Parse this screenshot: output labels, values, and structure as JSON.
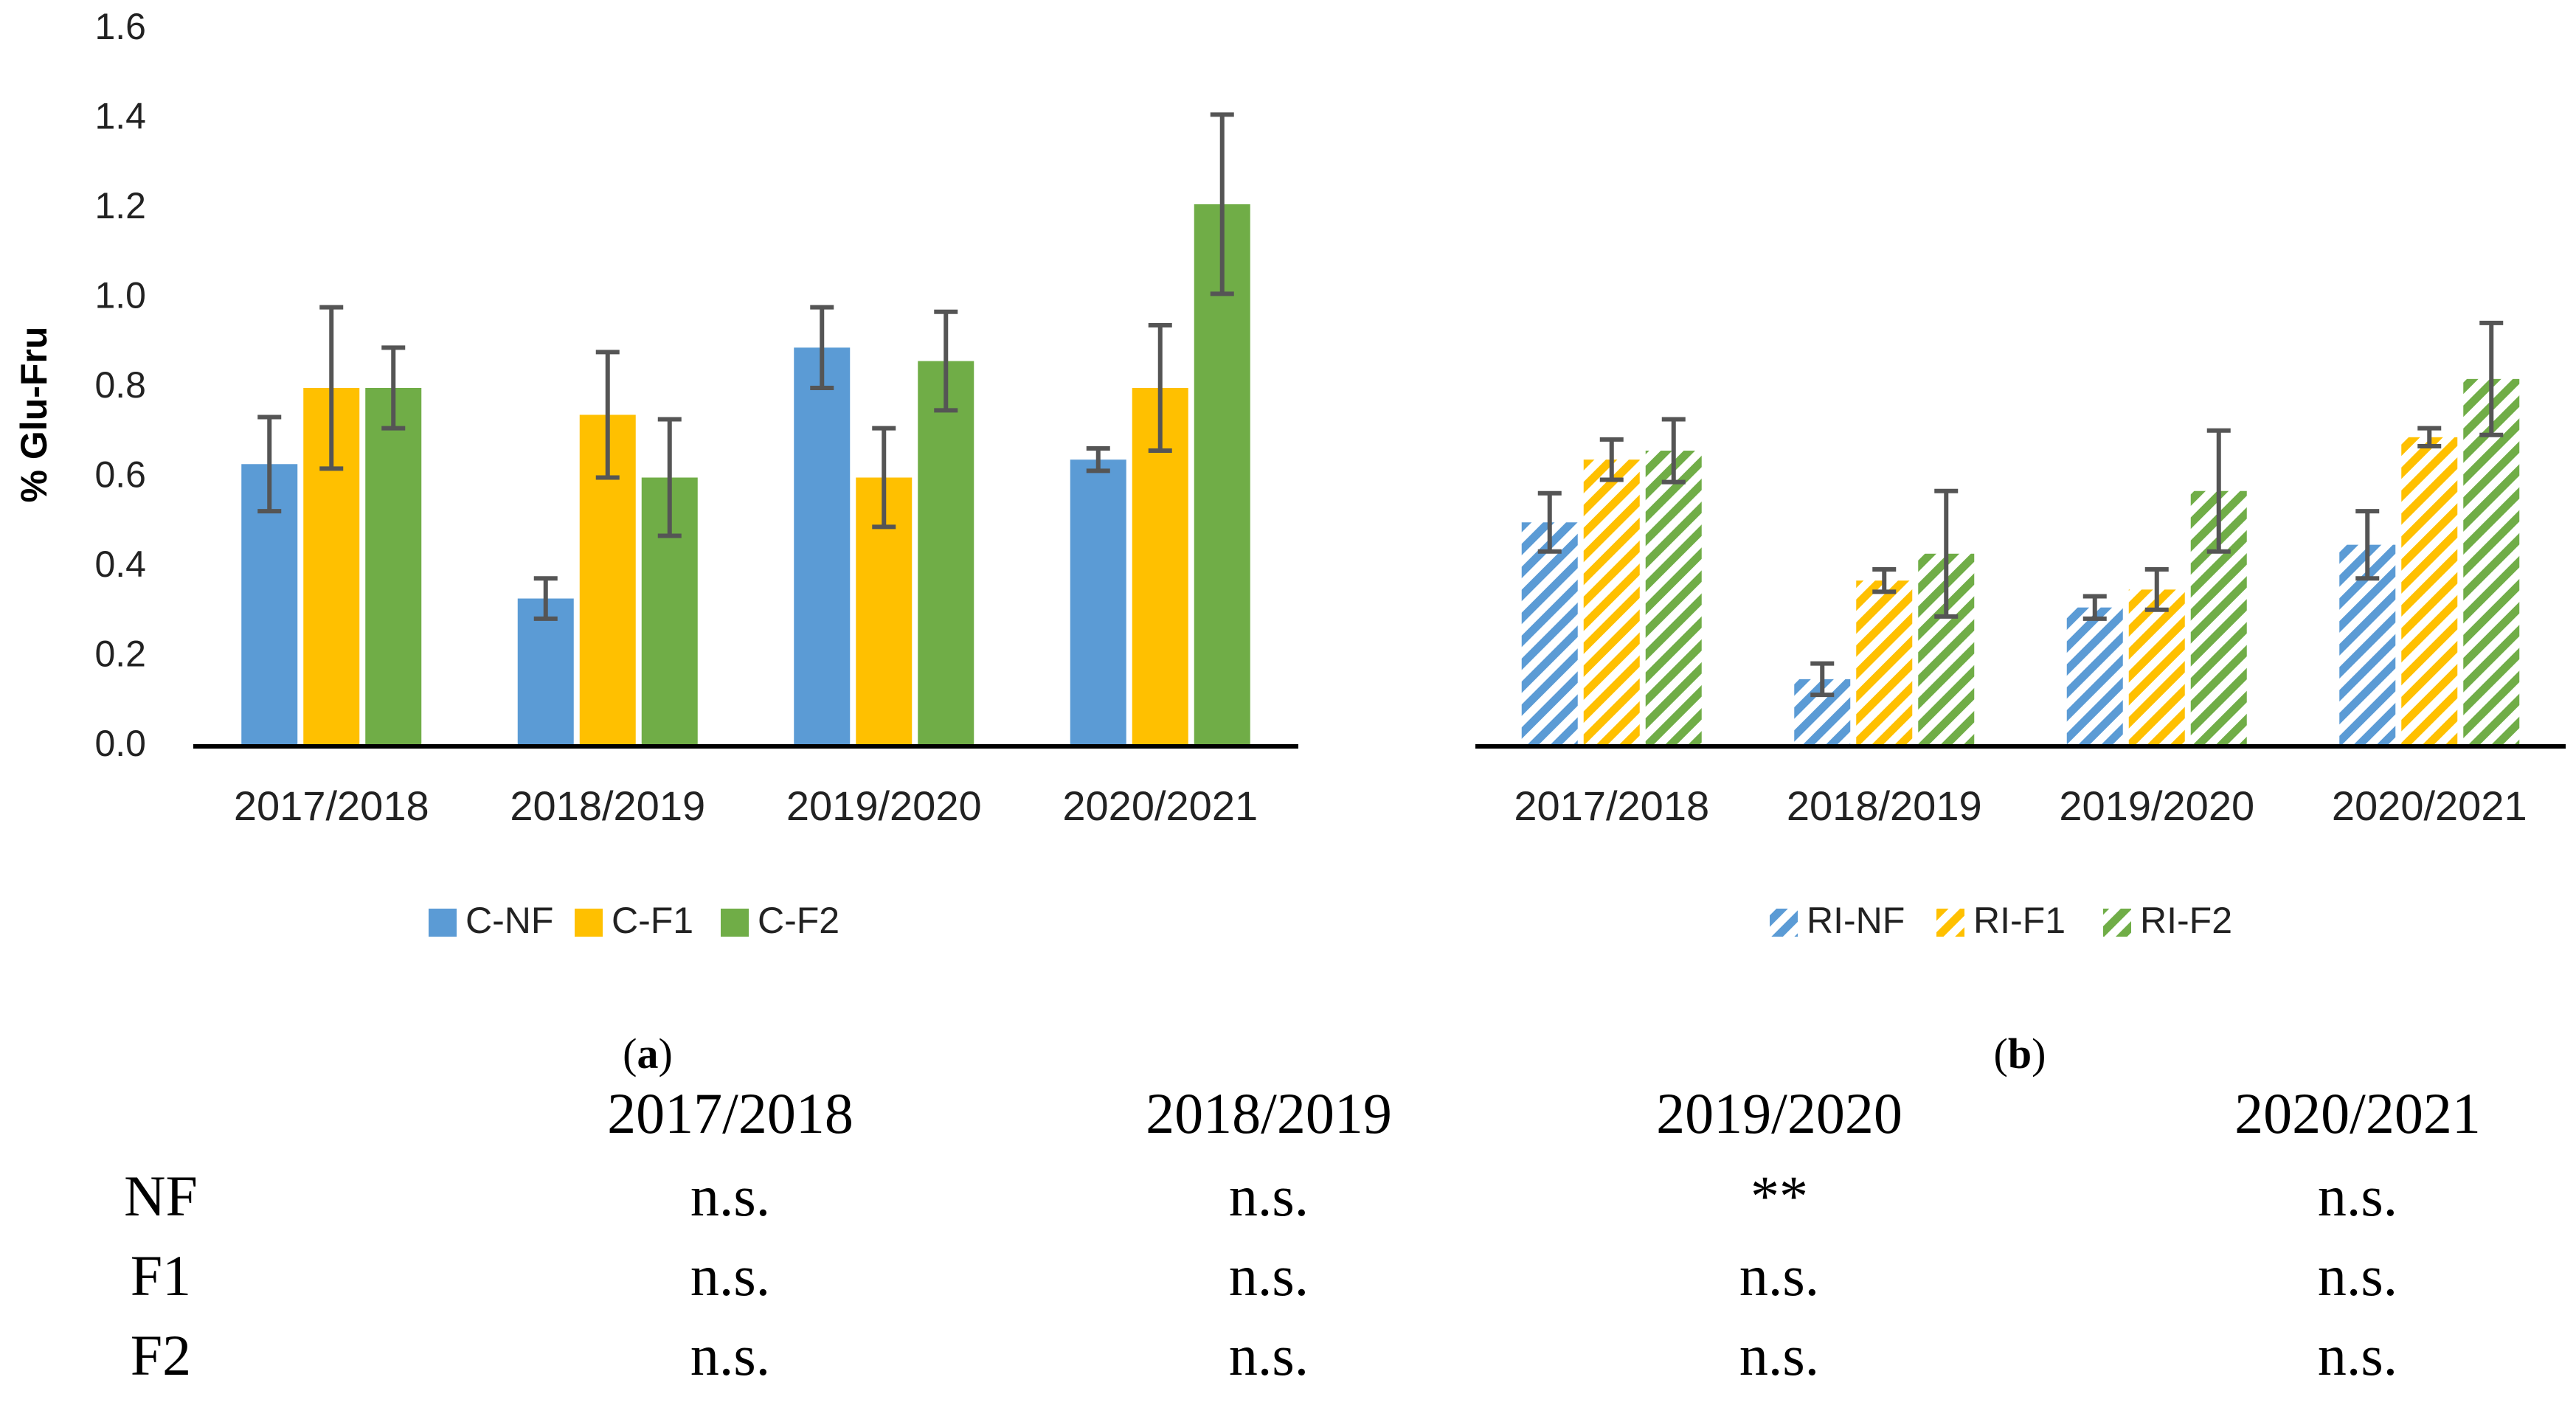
{
  "chart_data": [
    {
      "type": "bar",
      "panel_label": "a",
      "ylabel": "% Glu-Fru",
      "ylim": [
        0,
        1.6
      ],
      "yticks": [
        "0.0",
        "0.2",
        "0.4",
        "0.6",
        "0.8",
        "1.0",
        "1.2",
        "1.4",
        "1.6"
      ],
      "categories": [
        "2017/2018",
        "2018/2019",
        "2019/2020",
        "2020/2021"
      ],
      "legend_position": "bottom",
      "series": [
        {
          "name": "C-NF",
          "color": "#5B9BD5",
          "pattern": "solid",
          "values": [
            0.63,
            0.33,
            0.89,
            0.64
          ],
          "errors": [
            0.105,
            0.045,
            0.09,
            0.025
          ]
        },
        {
          "name": "C-F1",
          "color": "#FFC000",
          "pattern": "solid",
          "values": [
            0.8,
            0.74,
            0.6,
            0.8
          ],
          "errors": [
            0.18,
            0.14,
            0.11,
            0.14
          ]
        },
        {
          "name": "C-F2",
          "color": "#70AD47",
          "pattern": "solid",
          "values": [
            0.8,
            0.6,
            0.86,
            1.21
          ],
          "errors": [
            0.09,
            0.13,
            0.11,
            0.2
          ]
        }
      ]
    },
    {
      "type": "bar",
      "panel_label": "b",
      "ylim": [
        0,
        1.6
      ],
      "categories": [
        "2017/2018",
        "2018/2019",
        "2019/2020",
        "2020/2021"
      ],
      "legend_position": "bottom",
      "series": [
        {
          "name": "RI-NF",
          "color": "#5B9BD5",
          "pattern": "hatched",
          "values": [
            0.5,
            0.15,
            0.31,
            0.45
          ],
          "errors": [
            0.065,
            0.035,
            0.025,
            0.075
          ]
        },
        {
          "name": "RI-F1",
          "color": "#FFC000",
          "pattern": "hatched",
          "values": [
            0.64,
            0.37,
            0.35,
            0.69
          ],
          "errors": [
            0.045,
            0.025,
            0.045,
            0.02
          ]
        },
        {
          "name": "RI-F2",
          "color": "#70AD47",
          "pattern": "hatched",
          "values": [
            0.66,
            0.43,
            0.57,
            0.82
          ],
          "errors": [
            0.07,
            0.14,
            0.135,
            0.125
          ]
        }
      ]
    }
  ],
  "significance_table": {
    "columns": [
      "2017/2018",
      "2018/2019",
      "2019/2020",
      "2020/2021"
    ],
    "rows": [
      {
        "label": "NF",
        "cells": [
          "n.s.",
          "n.s.",
          "**",
          "n.s."
        ]
      },
      {
        "label": "F1",
        "cells": [
          "n.s.",
          "n.s.",
          "n.s.",
          "n.s."
        ]
      },
      {
        "label": "F2",
        "cells": [
          "n.s.",
          "n.s.",
          "n.s.",
          "n.s."
        ]
      }
    ]
  }
}
